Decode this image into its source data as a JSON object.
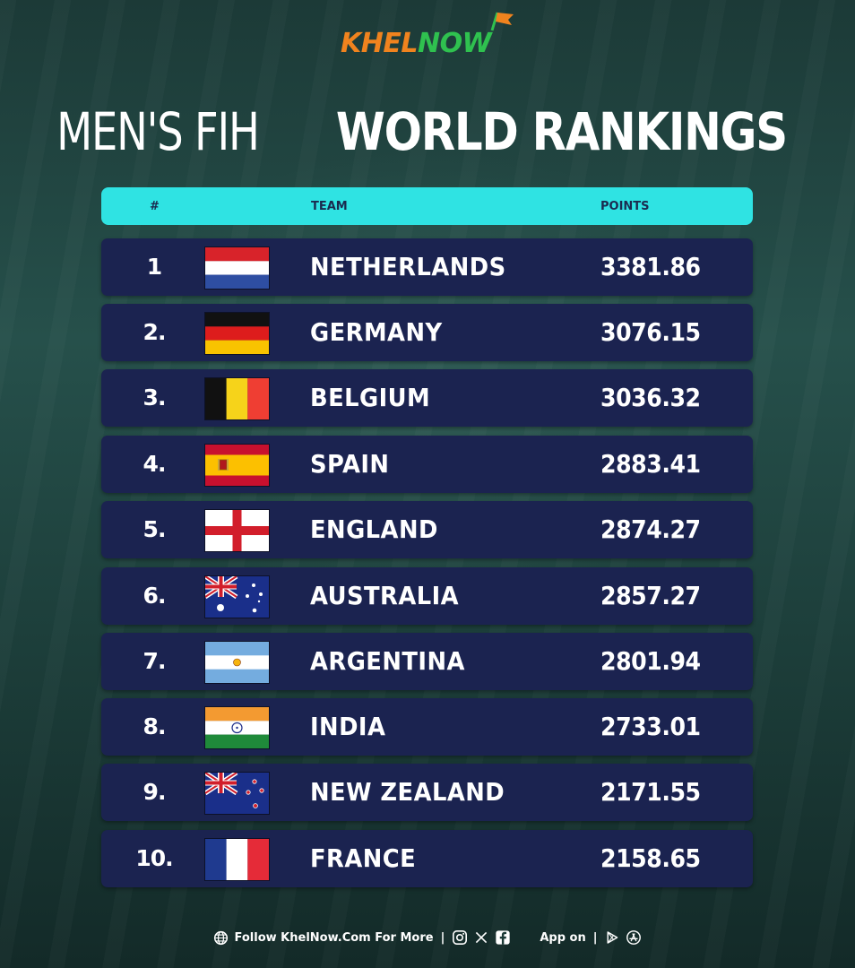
{
  "brand": {
    "part1": "KHEL",
    "part2": "NOW"
  },
  "title": {
    "light": "MEN'S FIH",
    "bold": "WORLD RANKINGS"
  },
  "table": {
    "headers": {
      "rank": "#",
      "team": "TEAM",
      "points": "POINTS"
    },
    "rows": [
      {
        "rank": "1",
        "team": "NETHERLANDS",
        "points": "3381.86",
        "flag_icon": "netherlands-flag-icon"
      },
      {
        "rank": "2.",
        "team": "GERMANY",
        "points": "3076.15",
        "flag_icon": "germany-flag-icon"
      },
      {
        "rank": "3.",
        "team": "BELGIUM",
        "points": "3036.32",
        "flag_icon": "belgium-flag-icon"
      },
      {
        "rank": "4.",
        "team": "SPAIN",
        "points": "2883.41",
        "flag_icon": "spain-flag-icon"
      },
      {
        "rank": "5.",
        "team": "ENGLAND",
        "points": "2874.27",
        "flag_icon": "england-flag-icon"
      },
      {
        "rank": "6.",
        "team": "AUSTRALIA",
        "points": "2857.27",
        "flag_icon": "australia-flag-icon"
      },
      {
        "rank": "7.",
        "team": "ARGENTINA",
        "points": "2801.94",
        "flag_icon": "argentina-flag-icon"
      },
      {
        "rank": "8.",
        "team": "INDIA",
        "points": "2733.01",
        "flag_icon": "india-flag-icon"
      },
      {
        "rank": "9.",
        "team": "NEW ZEALAND",
        "points": "2171.55",
        "flag_icon": "new-zealand-flag-icon"
      },
      {
        "rank": "10.",
        "team": "FRANCE",
        "points": "2158.65",
        "flag_icon": "france-flag-icon"
      }
    ]
  },
  "footer": {
    "follow_text": "Follow KhelNow.Com For More",
    "separator": "|",
    "app_text": "App on",
    "icons": [
      "globe-icon",
      "instagram-icon",
      "x-icon",
      "facebook-icon",
      "play-store-icon",
      "app-store-icon"
    ]
  },
  "colors": {
    "header_bar": "#2fe3e3",
    "row_bg": "#1b2350",
    "brand_orange": "#f0831e",
    "brand_green": "#2fc14f"
  }
}
